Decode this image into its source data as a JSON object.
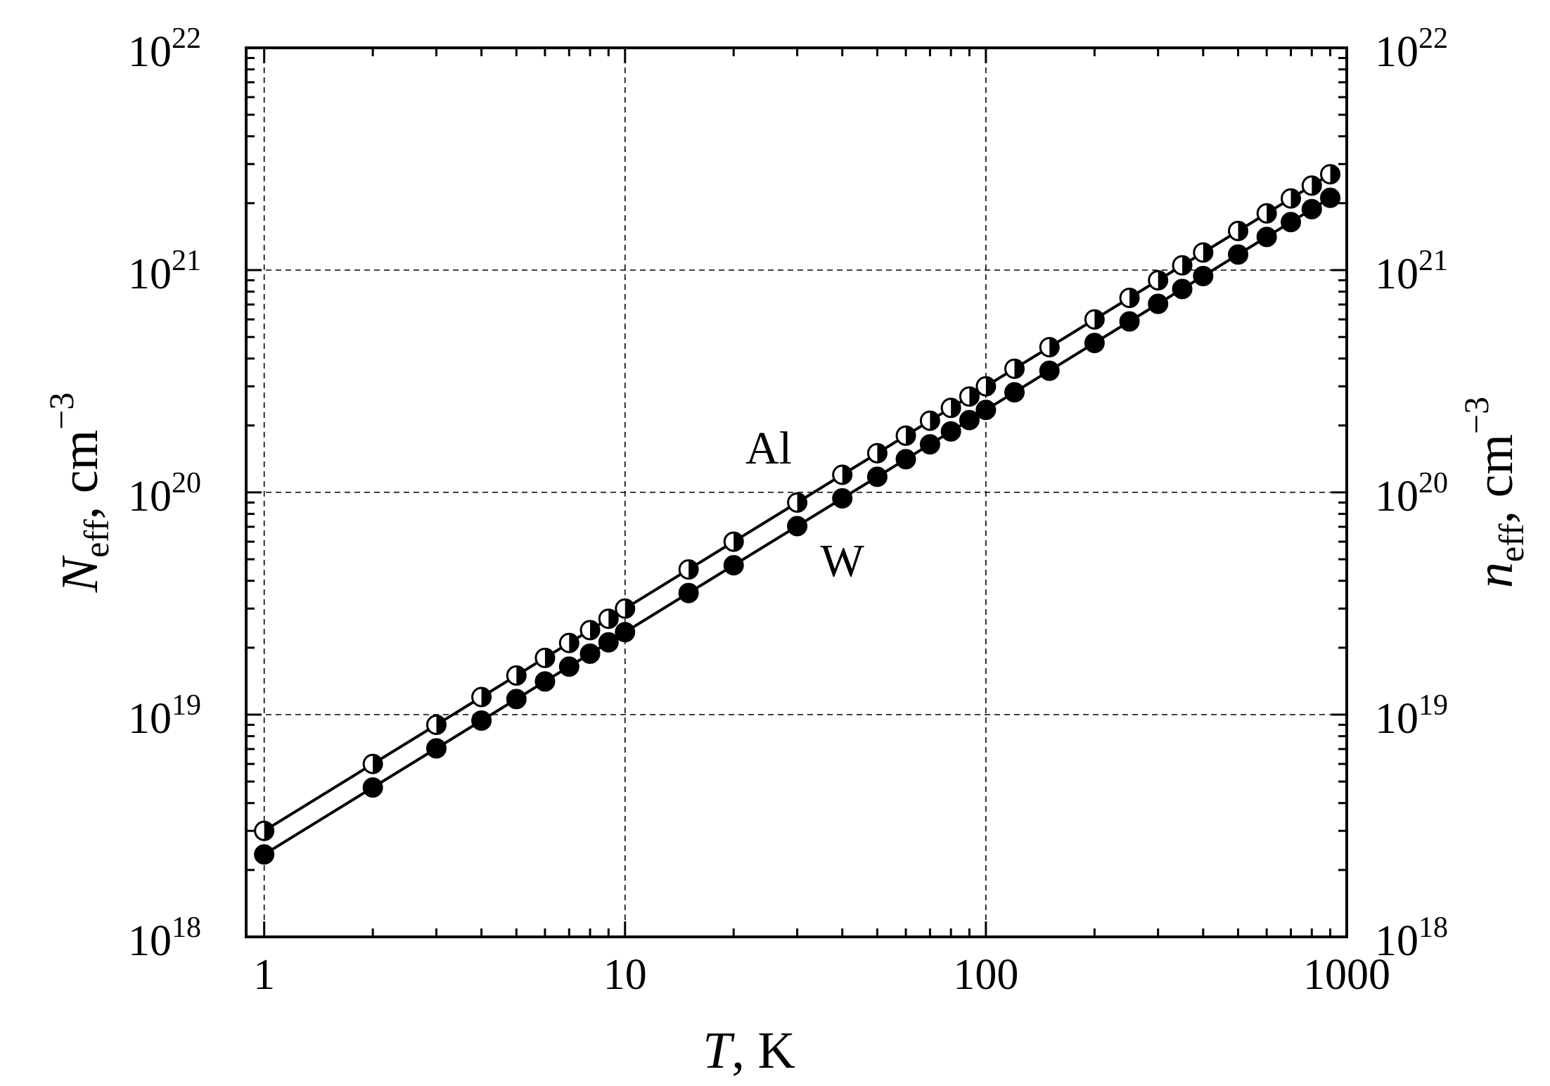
{
  "chart_data": {
    "type": "line",
    "title": "",
    "x_scale": "log",
    "y_scale": "log",
    "xlim": [
      1,
      1000
    ],
    "ylim": [
      1e+18,
      1e+22
    ],
    "grid": true,
    "x_tick_labels": [
      "1",
      "10",
      "100",
      "1000"
    ],
    "x_ticks": [
      1,
      10,
      100,
      1000
    ],
    "y_ticks": [
      1e+18,
      1e+19,
      1e+20,
      1e+21,
      1e+22
    ],
    "y_tick_labels": [
      {
        "base": "10",
        "exp": "18"
      },
      {
        "base": "10",
        "exp": "19"
      },
      {
        "base": "10",
        "exp": "20"
      },
      {
        "base": "10",
        "exp": "21"
      },
      {
        "base": "10",
        "exp": "22"
      }
    ],
    "xlabel": {
      "var": "T",
      "unit": ", K"
    },
    "ylabel_left": {
      "var": "N",
      "sub": "eff",
      "unit": ", cm",
      "exp": "−3"
    },
    "ylabel_right": {
      "var": "n",
      "sub": "eff",
      "unit": ", cm",
      "exp": "−3"
    },
    "x": [
      1,
      2,
      3,
      4,
      5,
      6,
      7,
      8,
      9,
      10,
      15,
      20,
      30,
      40,
      50,
      60,
      70,
      80,
      90,
      100,
      120,
      150,
      200,
      250,
      300,
      350,
      400,
      500,
      600,
      700,
      800,
      900
    ],
    "series": [
      {
        "name": "Al",
        "marker": "half-filled-circle",
        "values": [
          3e+18,
          6e+18,
          9e+18,
          1.2e+19,
          1.5e+19,
          1.8e+19,
          2.1e+19,
          2.4e+19,
          2.7e+19,
          3e+19,
          4.5e+19,
          6e+19,
          9e+19,
          1.2e+20,
          1.5e+20,
          1.8e+20,
          2.1e+20,
          2.4e+20,
          2.7e+20,
          3e+20,
          3.6e+20,
          4.5e+20,
          6e+20,
          7.5e+20,
          9e+20,
          1.05e+21,
          1.2e+21,
          1.5e+21,
          1.8e+21,
          2.1e+21,
          2.4e+21,
          2.7e+21
        ]
      },
      {
        "name": "W",
        "marker": "filled-circle",
        "values": [
          2.35e+18,
          4.7e+18,
          7.05e+18,
          9.4e+18,
          1.175e+19,
          1.41e+19,
          1.645e+19,
          1.88e+19,
          2.115e+19,
          2.35e+19,
          3.525e+19,
          4.7e+19,
          7.05e+19,
          9.4e+19,
          1.175e+20,
          1.41e+20,
          1.645e+20,
          1.88e+20,
          2.115e+20,
          2.35e+20,
          2.82e+20,
          3.525e+20,
          4.7e+20,
          5.875e+20,
          7.05e+20,
          8.225e+20,
          9.4e+20,
          1.175e+21,
          1.41e+21,
          1.645e+21,
          1.88e+21,
          2.115e+21
        ]
      }
    ],
    "annotations": [
      {
        "text": "Al",
        "x": 25,
        "y": 1.35e+20
      },
      {
        "text": "W",
        "x": 40,
        "y": 4.2e+19
      }
    ]
  }
}
